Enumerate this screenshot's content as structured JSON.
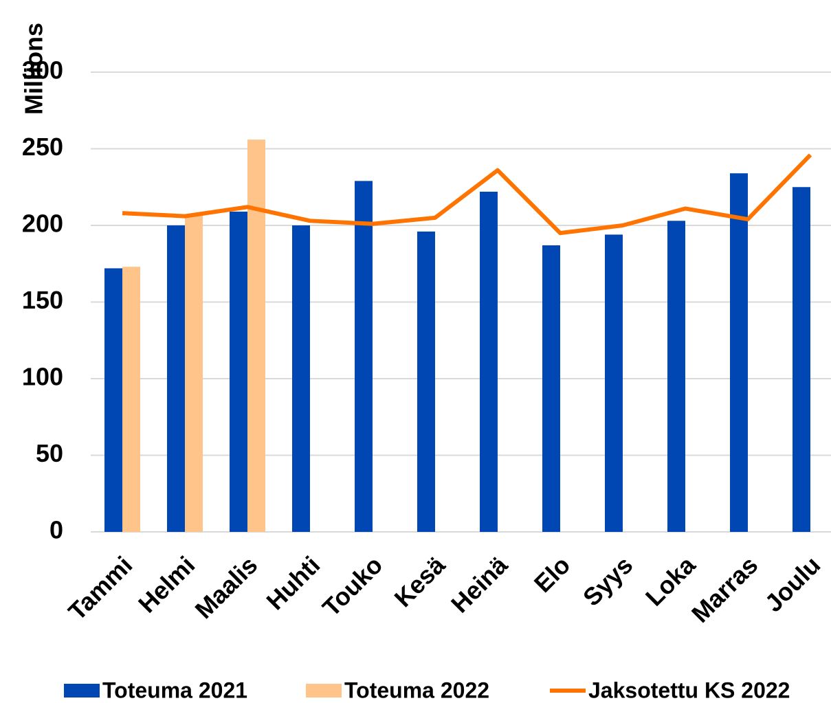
{
  "chart_data": {
    "type": "bar",
    "y_label": "Millions",
    "categories": [
      "Tammi",
      "Helmi",
      "Maalis",
      "Huhti",
      "Touko",
      "Kesä",
      "Heinä",
      "Elo",
      "Syys",
      "Loka",
      "Marras",
      "Joulu"
    ],
    "series": [
      {
        "name": "Toteuma 2021",
        "type": "bar",
        "color": "#0047b3",
        "values": [
          172,
          200,
          209,
          200,
          229,
          196,
          222,
          187,
          194,
          203,
          234,
          225
        ]
      },
      {
        "name": "Toteuma 2022",
        "type": "bar",
        "color": "#ffc48a",
        "values": [
          173,
          207,
          256,
          null,
          null,
          null,
          null,
          null,
          null,
          null,
          null,
          null
        ]
      },
      {
        "name": "Jaksotettu KS 2022",
        "type": "line",
        "color": "#ff7300",
        "values": [
          208,
          206,
          212,
          203,
          201,
          205,
          236,
          195,
          200,
          211,
          204,
          246
        ]
      }
    ],
    "ylim": [
      0,
      300
    ],
    "yticks": [
      0,
      50,
      100,
      150,
      200,
      250,
      300
    ],
    "grid": true
  }
}
